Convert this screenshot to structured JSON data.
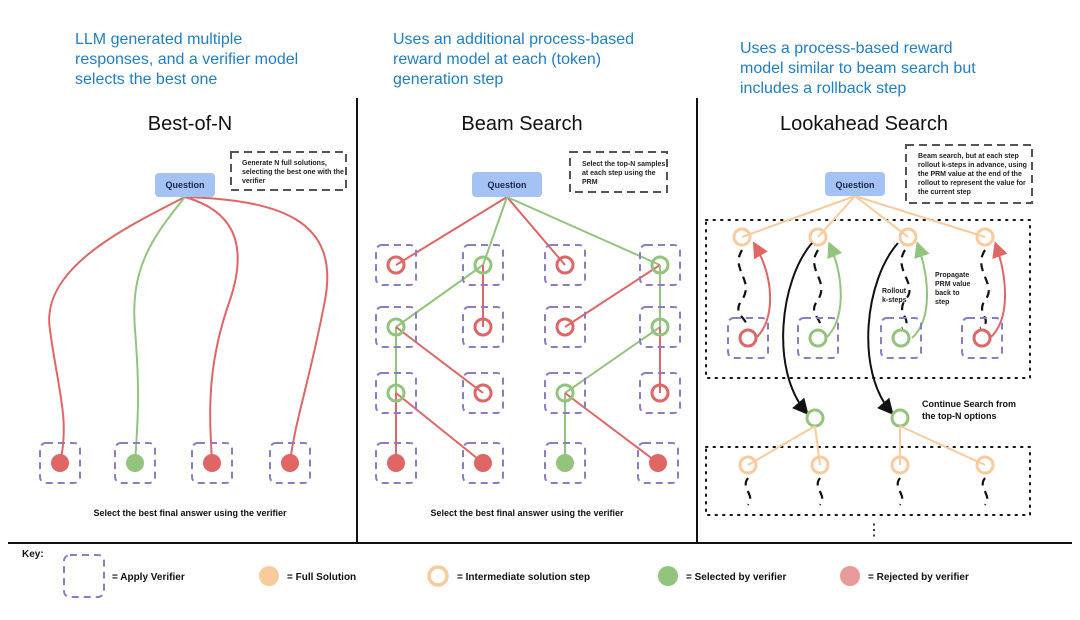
{
  "headers": [
    [
      "LLM generated multiple",
      "responses, and a verifier model",
      "selects the best one"
    ],
    [
      "Uses an additional process-based",
      "reward model at each (token)",
      "generation step"
    ],
    [
      "Uses a process-based reward",
      "model similar to beam search but",
      "includes a rollback step"
    ]
  ],
  "panels": {
    "best_of_n": {
      "title": "Best-of-N",
      "question": "Question",
      "note": [
        "Generate N full solutions,",
        "selecting the best one with the",
        "verifier"
      ],
      "caption": "Select the best final answer using the verifier"
    },
    "beam_search": {
      "title": "Beam Search",
      "question": "Question",
      "note": [
        "Select the top-N samples",
        "at each step using the",
        "PRM"
      ],
      "caption": "Select the best final answer using the verifier"
    },
    "lookahead": {
      "title": "Lookahead Search",
      "question": "Question",
      "note": [
        "Beam search, but at each step",
        "rollout k-steps in advance, using",
        "the PRM value at the end of the",
        "rollout to represent the value for",
        "the current step"
      ],
      "rollout_label": [
        "Rollout",
        "k-steps"
      ],
      "propagate_label": [
        "Propagate",
        "PRM value",
        "back to",
        "step"
      ],
      "continue_label": [
        "Continue Search from",
        "the top-N options"
      ],
      "ellipsis": "⋮"
    }
  },
  "key": {
    "label": "Key:",
    "items": [
      {
        "text": "=  Apply Verifier"
      },
      {
        "text": "=  Full Solution"
      },
      {
        "text": "=  Intermediate solution step"
      },
      {
        "text": "=  Selected by verifier"
      },
      {
        "text": "=  Rejected by verifier"
      }
    ]
  },
  "colors": {
    "rejected": "#e06666",
    "selected": "#93c47d",
    "solution": "#f9cb9c",
    "verifier": "#8e7cc3",
    "question": "#a4c2f4",
    "header_text": "#1f7fc4"
  }
}
